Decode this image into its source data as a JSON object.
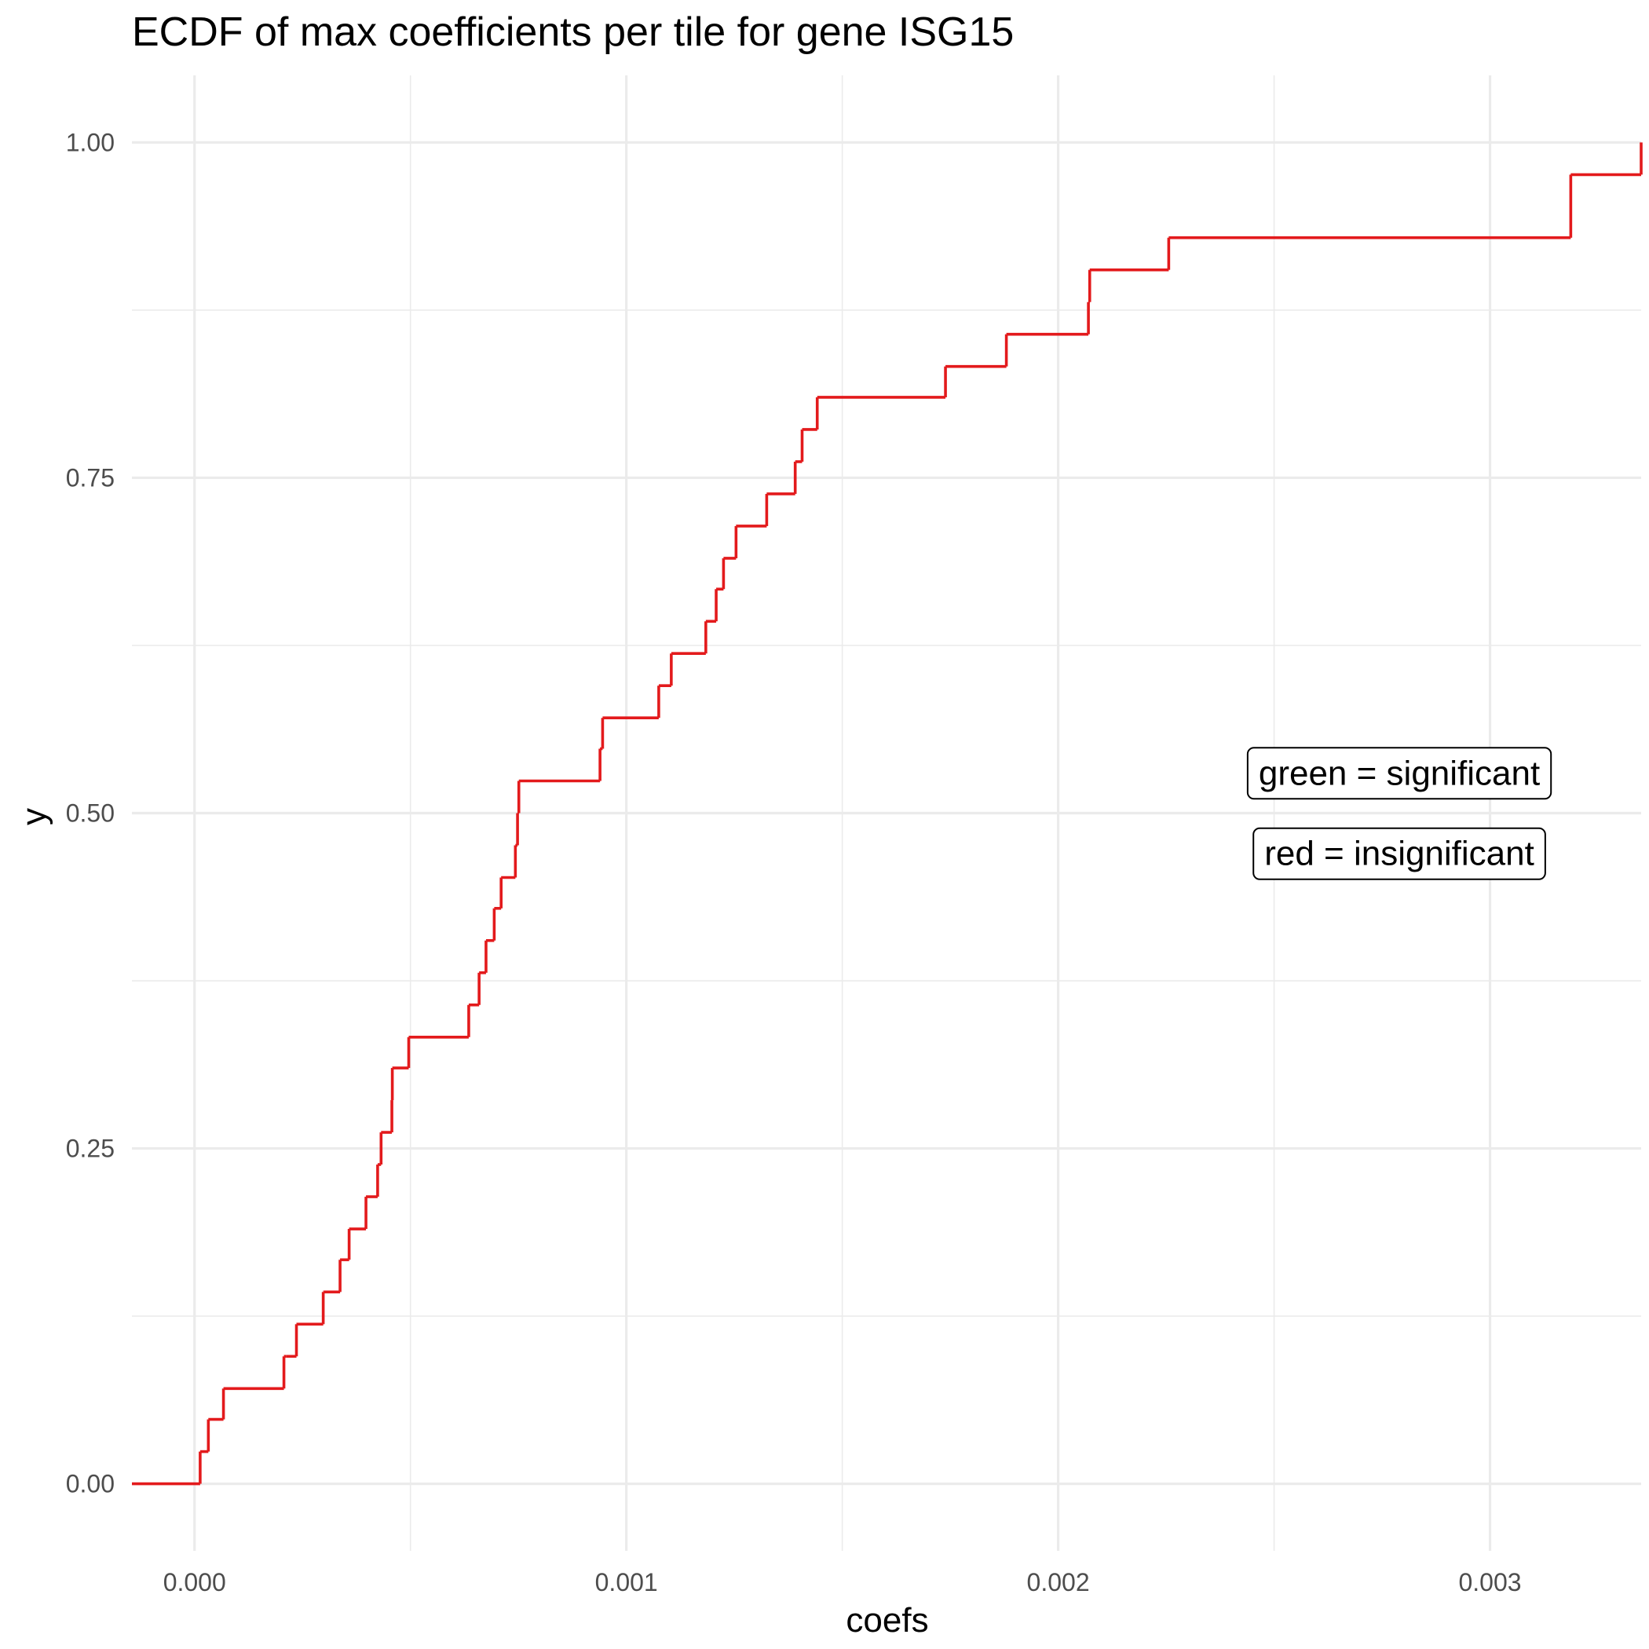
{
  "chart_data": {
    "type": "line",
    "subtype": "ecdf-step",
    "title": "ECDF of max coefficients per tile for gene ISG15",
    "xlabel": "coefs",
    "ylabel": "y",
    "xlim": [
      -0.000145,
      0.00335
    ],
    "ylim": [
      -0.05,
      1.05
    ],
    "x_major_ticks": [
      0.0,
      0.001,
      0.002,
      0.003
    ],
    "x_tick_labels": [
      "0.000",
      "0.001",
      "0.002",
      "0.003"
    ],
    "x_minor_ticks": [
      0.0005,
      0.0015,
      0.0025
    ],
    "y_major_ticks": [
      0.0,
      0.25,
      0.5,
      0.75,
      1.0
    ],
    "y_tick_labels": [
      "0.00",
      "0.25",
      "0.50",
      "0.75",
      "1.00"
    ],
    "y_minor_ticks": [
      0.125,
      0.375,
      0.625,
      0.875
    ],
    "grid": true,
    "series": [
      {
        "color": "#e31a1c",
        "x": [
          1.3e-05,
          3.2e-05,
          6.7e-05,
          0.000207,
          0.000212,
          0.000236,
          0.000298,
          0.0003,
          0.000337,
          0.000358,
          0.000397,
          0.000424,
          0.000432,
          0.000457,
          0.000458,
          0.000496,
          0.000635,
          0.000659,
          0.000675,
          0.000694,
          0.00071,
          0.000743,
          0.000748,
          0.000751,
          0.000939,
          0.000945,
          0.001075,
          0.001104,
          0.001184,
          0.001208,
          0.001225,
          0.001254,
          0.001325,
          0.001391,
          0.001407,
          0.001442,
          0.001739,
          0.00188,
          0.00207,
          0.002073,
          0.002256,
          0.003187,
          0.00335
        ],
        "y": [
          0.024,
          0.048,
          0.071,
          0.095,
          0.095,
          0.119,
          0.143,
          0.143,
          0.167,
          0.19,
          0.214,
          0.238,
          0.262,
          0.286,
          0.31,
          0.333,
          0.357,
          0.381,
          0.405,
          0.429,
          0.452,
          0.476,
          0.5,
          0.524,
          0.548,
          0.571,
          0.595,
          0.619,
          0.643,
          0.667,
          0.69,
          0.714,
          0.738,
          0.762,
          0.786,
          0.81,
          0.833,
          0.857,
          0.881,
          0.905,
          0.929,
          0.976,
          1.0
        ]
      }
    ],
    "annotations": [
      {
        "text": "green = significant",
        "x": 0.00279,
        "y": 0.53
      },
      {
        "text": "red = insignificant",
        "x": 0.00279,
        "y": 0.47
      }
    ]
  }
}
